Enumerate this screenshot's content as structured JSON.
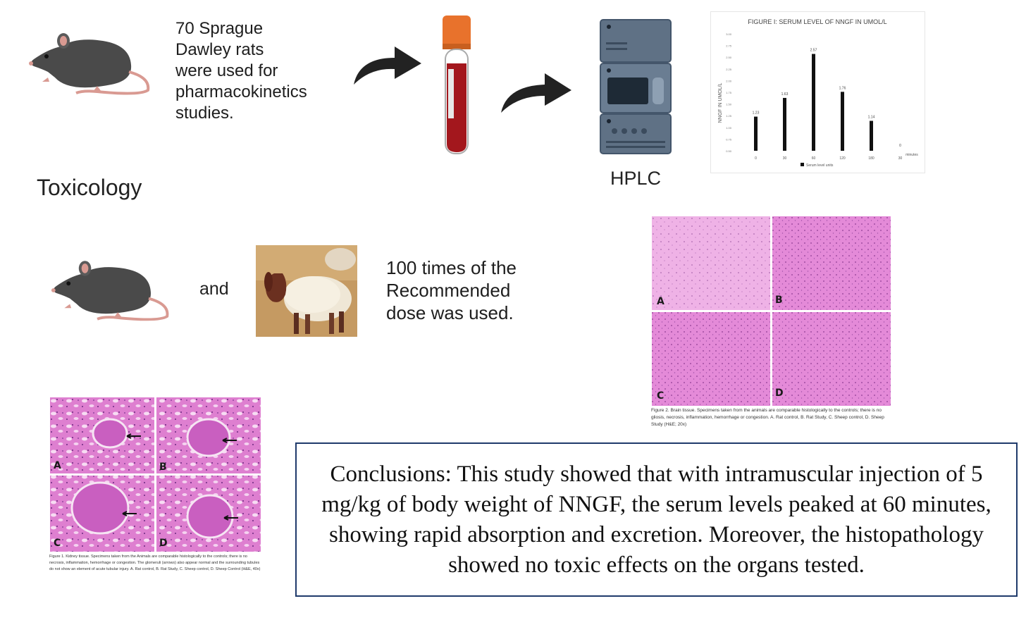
{
  "top": {
    "rats_text": "70 Sprague\nDawley  rats\nwere used for\npharmacokinetics\nstudies.",
    "hplc_label": "HPLC",
    "toxicology_label": "Toxicology"
  },
  "middle": {
    "and_label": "and",
    "dose_text": "100 times of the\nRecommended\ndose was used."
  },
  "chart": {
    "title": "FIGURE I: SERUM LEVEL OF NNGF IN UMOL/L",
    "ylabel": "NNGF IN UMOL/L",
    "legend": "Serum level units",
    "x_unit": "minutes"
  },
  "chart_data": {
    "type": "bar",
    "title": "FIGURE I: SERUM LEVEL OF NNGF IN UMOL/L",
    "ylabel": "NNGF IN UMOL/L",
    "categories": [
      "0",
      "30",
      "60",
      "120",
      "180",
      "30"
    ],
    "values": [
      1.23,
      1.63,
      2.57,
      1.76,
      1.14,
      0.0
    ],
    "value_labels": [
      "1.23",
      "1.63",
      "2.57",
      "1.76",
      "1.14",
      "0"
    ],
    "ylim": [
      0.5,
      3.0
    ],
    "legend": "top-bottom",
    "grid": false
  },
  "brain_figure": {
    "panels": [
      "A",
      "B",
      "C",
      "D"
    ],
    "caption": "Figure 2. Brain tissue. Specimens taken from the animals are comparable histologically to the controls; there is no gliosis, necrosis, inflammation, hemorrhage or congestion. A. Rat control, B. Rat Study, C. Sheep control, D. Sheep Study (H&E; 20x)",
    "colors": {
      "tissue": "#e48ad8",
      "tissue_light": "#efb2e6"
    }
  },
  "kidney_figure": {
    "panels": [
      "A",
      "B",
      "C",
      "D"
    ],
    "caption": "Figure 1. Kidney tissue. Specimens taken from the Animals are comparable histologically to the controls; there is no necrosis, inflammation, hemorrhage or congestion. The glomeruli (arrows) also appear normal and the surrounding tubules do not show an element of acute tubular injury. A. Rat control, B. Rat Study, C. Sheep control, D. Sheep Control (H&E, 40x)",
    "colors": {
      "tissue": "#de7fd0",
      "tissue_light": "#f2c0ec"
    }
  },
  "conclusion": {
    "text": "Conclusions: This study showed that with intramuscular injection of 5 mg/kg of body weight of NNGF, the serum levels peaked at 60 minutes, showing rapid absorption and excretion. Moreover, the histopathology showed no toxic effects on the organs tested."
  },
  "icons": {
    "rat": "rat-icon",
    "sheep": "sheep-photo",
    "tube": "blood-tube-icon",
    "arrow": "curved-arrow-icon",
    "hplc": "hplc-machine-icon"
  },
  "colors": {
    "rat_body": "#4a4a4a",
    "rat_tail": "#d99a92",
    "tube_cap": "#e8722c",
    "blood": "#a3171d",
    "hplc": "#5f7185",
    "border": "#1f3a6b"
  }
}
